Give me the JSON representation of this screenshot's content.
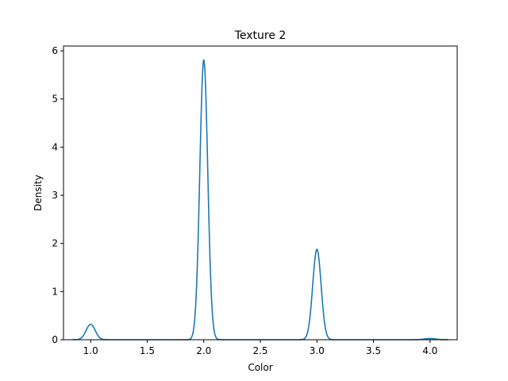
{
  "chart_data": {
    "type": "line",
    "title": "Texture 2",
    "xlabel": "Color",
    "ylabel": "Density",
    "xlim": [
      0.76,
      4.24
    ],
    "ylim": [
      0,
      6.1
    ],
    "grid": false,
    "xticks": [
      1.0,
      1.5,
      2.0,
      2.5,
      3.0,
      3.5,
      4.0
    ],
    "xtick_labels": [
      "1.0",
      "1.5",
      "2.0",
      "2.5",
      "3.0",
      "3.5",
      "4.0"
    ],
    "yticks": [
      0,
      1,
      2,
      3,
      4,
      5,
      6
    ],
    "ytick_labels": [
      "0",
      "1",
      "2",
      "3",
      "4",
      "5",
      "6"
    ],
    "series": [
      {
        "color": "#1f77b4",
        "x_range": [
          0.84,
          4.16
        ],
        "peaks": [
          {
            "x": 1.0,
            "height": 0.32,
            "width": 0.04
          },
          {
            "x": 2.0,
            "height": 5.82,
            "width": 0.035
          },
          {
            "x": 3.0,
            "height": 1.88,
            "width": 0.037
          },
          {
            "x": 4.0,
            "height": 0.025,
            "width": 0.05
          }
        ]
      }
    ]
  }
}
